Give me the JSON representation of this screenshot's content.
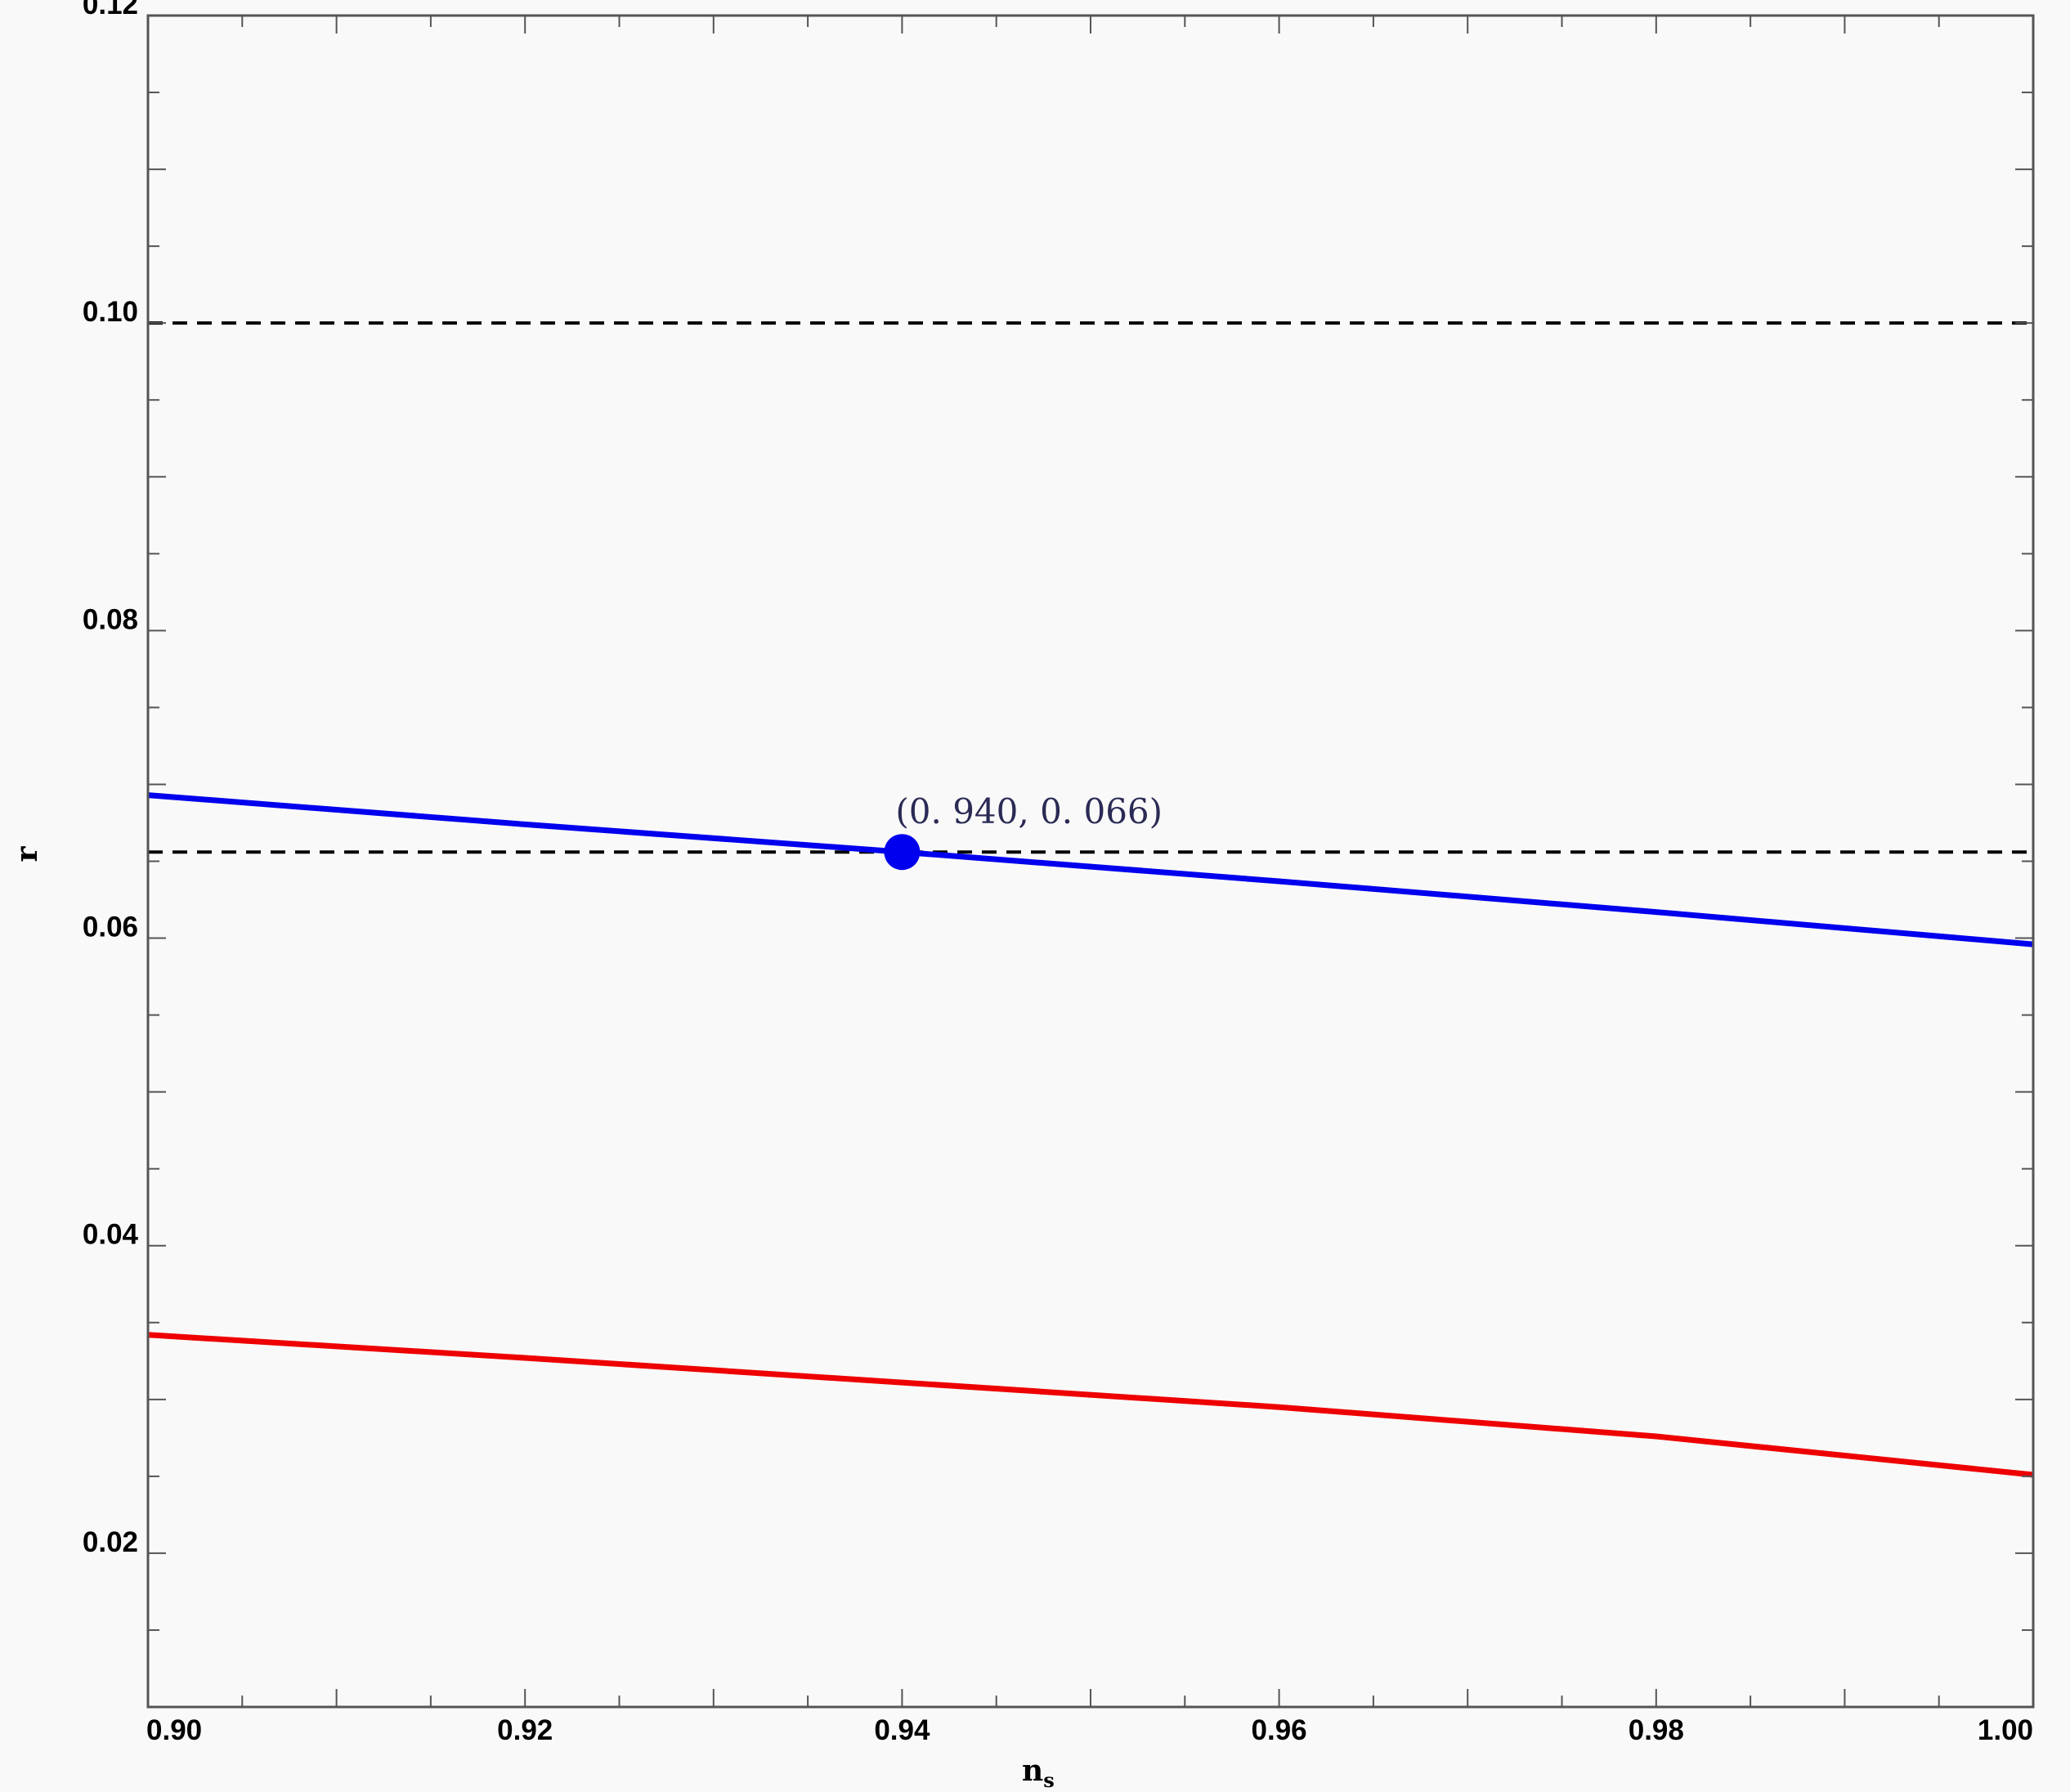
{
  "chart_data": {
    "type": "line",
    "title": "",
    "xlabel": "n",
    "xlabel_subscript": "s",
    "ylabel": "r",
    "xlim": [
      0.9,
      1.0
    ],
    "ylim": [
      0.01,
      0.12
    ],
    "xticks": [
      "0.90",
      "0.92",
      "0.94",
      "0.96",
      "0.98",
      "1.00"
    ],
    "yticks": [
      "0.02",
      "0.04",
      "0.06",
      "0.08",
      "0.10",
      "0.12"
    ],
    "grid": false,
    "series": [
      {
        "color": "#0000ee",
        "x": [
          0.9,
          0.92,
          0.94,
          0.96,
          0.98,
          1.0
        ],
        "y": [
          0.0693,
          0.0674,
          0.0656,
          0.0637,
          0.0617,
          0.0596
        ]
      },
      {
        "color": "#ee0000",
        "x": [
          0.9,
          0.92,
          0.94,
          0.96,
          0.98,
          1.0
        ],
        "y": [
          0.0342,
          0.0327,
          0.0311,
          0.0295,
          0.0276,
          0.0251
        ]
      }
    ],
    "hlines": [
      {
        "y": 0.1,
        "style": "dashed",
        "color": "#000000"
      },
      {
        "y": 0.0656,
        "style": "dashed",
        "color": "#000000"
      }
    ],
    "points": [
      {
        "x": 0.94,
        "y": 0.0656,
        "color": "#0000ee",
        "label": "(0. 940,  0. 066)"
      }
    ]
  }
}
